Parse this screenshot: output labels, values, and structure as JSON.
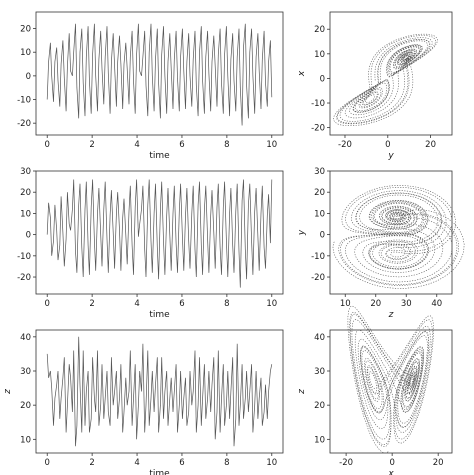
{
  "chart_data": [
    {
      "type": "line",
      "panel": "x-time",
      "xlabel": "time",
      "ylabel": "",
      "xlim": [
        -0.5,
        10.5
      ],
      "ylim": [
        -25,
        27
      ],
      "xticks": [
        0,
        2,
        4,
        6,
        8,
        10
      ],
      "yticks": [
        -20,
        -10,
        0,
        10,
        20
      ],
      "grid": false,
      "color": "#555555",
      "series": [
        {
          "x": [
            0,
            0.06,
            0.14,
            0.2,
            0.28,
            0.34,
            0.42,
            0.48,
            0.56,
            0.62,
            0.7,
            0.76,
            0.84,
            0.9,
            0.98,
            1.04,
            1.12,
            1.18,
            1.26,
            1.32,
            1.4,
            1.46,
            1.54,
            1.6,
            1.68,
            1.74,
            1.82,
            1.88,
            1.96,
            2.02,
            2.1,
            2.16,
            2.24,
            2.3,
            2.38,
            2.44,
            2.52,
            2.58,
            2.66,
            2.72,
            2.8,
            2.86,
            2.94,
            3.0,
            3.08,
            3.14,
            3.22,
            3.28,
            3.36,
            3.42,
            3.5,
            3.56,
            3.64,
            3.7,
            3.78,
            3.84,
            3.92,
            3.98,
            4.06,
            4.12,
            4.2,
            4.26,
            4.34,
            4.4,
            4.48,
            4.54,
            4.62,
            4.68,
            4.76,
            4.82,
            4.9,
            4.96,
            5.04,
            5.1,
            5.18,
            5.24,
            5.32,
            5.38,
            5.46,
            5.52,
            5.6,
            5.66,
            5.74,
            5.8,
            5.88,
            5.94,
            6.02,
            6.08,
            6.16,
            6.22,
            6.3,
            6.36,
            6.44,
            6.5,
            6.58,
            6.64,
            6.72,
            6.78,
            6.86,
            6.92,
            7.0,
            7.06,
            7.14,
            7.2,
            7.28,
            7.34,
            7.42,
            7.48,
            7.56,
            7.62,
            7.7,
            7.76,
            7.84,
            7.9,
            7.98,
            8.04,
            8.12,
            8.18,
            8.26,
            8.32,
            8.4,
            8.46,
            8.54,
            8.6,
            8.68,
            8.74,
            8.82,
            8.88,
            8.96,
            9.02,
            9.1,
            9.16,
            9.24,
            9.3,
            9.38,
            9.44,
            9.52,
            9.58,
            9.66,
            9.72,
            9.8,
            9.86,
            9.94,
            10.0
          ],
          "y": [
            -10,
            6,
            14,
            0,
            -11,
            6,
            12,
            -2,
            -13,
            5,
            15,
            -1,
            -15,
            4,
            18,
            2,
            0,
            10,
            22,
            -5,
            -18,
            10,
            20,
            -3,
            -17,
            8,
            21,
            -2,
            -16,
            9,
            22,
            0,
            -15,
            7,
            19,
            3,
            -12,
            8,
            21,
            1,
            -16,
            6,
            18,
            4,
            -13,
            6,
            17,
            5,
            -14,
            5,
            14,
            3,
            -12,
            8,
            19,
            -2,
            -16,
            9,
            22,
            2,
            0,
            8,
            19,
            -4,
            -17,
            10,
            22,
            0,
            -15,
            7,
            20,
            -3,
            -18,
            9,
            21,
            0,
            -16,
            6,
            18,
            3,
            -14,
            7,
            19,
            -1,
            -15,
            8,
            20,
            2,
            -14,
            6,
            18,
            0,
            -13,
            7,
            19,
            -4,
            -17,
            10,
            21,
            -2,
            -16,
            8,
            19,
            1,
            -15,
            6,
            17,
            4,
            -13,
            9,
            20,
            -3,
            -16,
            9,
            21,
            0,
            -17,
            7,
            18,
            -2,
            -15,
            8,
            20,
            -5,
            -21,
            12,
            22,
            -4,
            -18,
            10,
            20,
            0,
            -16,
            8,
            18,
            2,
            -14,
            7,
            19,
            -3,
            -13,
            6,
            15,
            -9
          ]
        }
      ]
    },
    {
      "type": "scatter",
      "panel": "x-vs-y",
      "xlabel": "y",
      "ylabel": "x",
      "xlim": [
        -27,
        30
      ],
      "ylim": [
        -23,
        27
      ],
      "xticks": [
        -20,
        0,
        20
      ],
      "yticks": [
        -20,
        -10,
        0,
        10,
        20
      ],
      "grid": false,
      "color": "#555555",
      "attractor": {
        "axes": [
          "y",
          "x"
        ]
      }
    },
    {
      "type": "line",
      "panel": "y-time",
      "xlabel": "time",
      "ylabel": "",
      "xlim": [
        -0.5,
        10.5
      ],
      "ylim": [
        -28,
        30
      ],
      "xticks": [
        0,
        2,
        4,
        6,
        8,
        10
      ],
      "yticks": [
        -20,
        -10,
        0,
        10,
        20,
        30
      ],
      "grid": false,
      "color": "#555555",
      "series": [
        {
          "x": [
            0,
            0.06,
            0.14,
            0.2,
            0.28,
            0.34,
            0.42,
            0.48,
            0.56,
            0.62,
            0.7,
            0.76,
            0.84,
            0.9,
            0.98,
            1.04,
            1.12,
            1.18,
            1.26,
            1.32,
            1.4,
            1.46,
            1.54,
            1.6,
            1.68,
            1.74,
            1.82,
            1.88,
            1.96,
            2.02,
            2.1,
            2.16,
            2.24,
            2.3,
            2.38,
            2.44,
            2.52,
            2.58,
            2.66,
            2.72,
            2.8,
            2.86,
            2.94,
            3.0,
            3.08,
            3.14,
            3.22,
            3.28,
            3.36,
            3.42,
            3.5,
            3.56,
            3.64,
            3.7,
            3.78,
            3.84,
            3.92,
            3.98,
            4.06,
            4.12,
            4.2,
            4.26,
            4.34,
            4.4,
            4.48,
            4.54,
            4.62,
            4.68,
            4.76,
            4.82,
            4.9,
            4.96,
            5.04,
            5.1,
            5.18,
            5.24,
            5.32,
            5.38,
            5.46,
            5.52,
            5.6,
            5.66,
            5.74,
            5.8,
            5.88,
            5.94,
            6.02,
            6.08,
            6.16,
            6.22,
            6.3,
            6.36,
            6.44,
            6.5,
            6.58,
            6.64,
            6.72,
            6.78,
            6.86,
            6.92,
            7.0,
            7.06,
            7.14,
            7.2,
            7.28,
            7.34,
            7.42,
            7.48,
            7.56,
            7.62,
            7.7,
            7.76,
            7.84,
            7.9,
            7.98,
            8.04,
            8.12,
            8.18,
            8.26,
            8.32,
            8.4,
            8.46,
            8.54,
            8.6,
            8.68,
            8.74,
            8.82,
            8.88,
            8.96,
            9.02,
            9.1,
            9.16,
            9.24,
            9.3,
            9.38,
            9.44,
            9.52,
            9.58,
            9.66,
            9.72,
            9.8,
            9.86,
            9.94,
            10.0
          ],
          "y": [
            0,
            15,
            8,
            -10,
            -3,
            14,
            2,
            -12,
            -5,
            18,
            1,
            -15,
            -2,
            20,
            5,
            2,
            12,
            26,
            -8,
            -18,
            14,
            24,
            -6,
            -20,
            12,
            25,
            -5,
            -19,
            13,
            26,
            -3,
            -17,
            10,
            22,
            0,
            -15,
            12,
            25,
            -2,
            -18,
            9,
            21,
            1,
            -16,
            10,
            20,
            2,
            -17,
            8,
            17,
            0,
            -14,
            11,
            23,
            -5,
            -19,
            13,
            26,
            -1,
            5,
            12,
            23,
            -7,
            -20,
            14,
            26,
            -3,
            -18,
            10,
            24,
            -6,
            -21,
            12,
            25,
            -3,
            -19,
            9,
            22,
            0,
            -17,
            10,
            23,
            -4,
            -18,
            11,
            24,
            -1,
            -17,
            9,
            22,
            -3,
            -16,
            10,
            23,
            -7,
            -20,
            14,
            25,
            -5,
            -19,
            12,
            23,
            -2,
            -18,
            9,
            21,
            1,
            -16,
            13,
            24,
            -6,
            -19,
            13,
            25,
            -3,
            -20,
            10,
            22,
            -5,
            -18,
            11,
            24,
            -8,
            -25,
            16,
            26,
            -7,
            -21,
            14,
            24,
            -3,
            -19,
            11,
            22,
            -1,
            -17,
            10,
            23,
            -6,
            -16,
            9,
            19,
            -4,
            26
          ]
        }
      ]
    },
    {
      "type": "scatter",
      "panel": "y-vs-z",
      "xlabel": "z",
      "ylabel": "y",
      "xlim": [
        5,
        45
      ],
      "ylim": [
        -28,
        30
      ],
      "xticks": [
        10,
        20,
        30,
        40
      ],
      "yticks": [
        -20,
        -10,
        0,
        10,
        20,
        30
      ],
      "grid": false,
      "color": "#555555",
      "attractor": {
        "axes": [
          "z",
          "y"
        ]
      }
    },
    {
      "type": "line",
      "panel": "z-time",
      "xlabel": "time",
      "ylabel": "z",
      "xlim": [
        -0.5,
        10.5
      ],
      "ylim": [
        6,
        42
      ],
      "xticks": [
        0,
        2,
        4,
        6,
        8,
        10
      ],
      "yticks": [
        10,
        20,
        30,
        40
      ],
      "grid": false,
      "color": "#555555",
      "series": [
        {
          "x": [
            0,
            0.06,
            0.14,
            0.2,
            0.28,
            0.34,
            0.42,
            0.48,
            0.56,
            0.62,
            0.7,
            0.76,
            0.84,
            0.9,
            0.98,
            1.04,
            1.12,
            1.18,
            1.26,
            1.32,
            1.4,
            1.46,
            1.54,
            1.6,
            1.68,
            1.74,
            1.82,
            1.88,
            1.96,
            2.02,
            2.1,
            2.16,
            2.24,
            2.3,
            2.38,
            2.44,
            2.52,
            2.58,
            2.66,
            2.72,
            2.8,
            2.86,
            2.94,
            3.0,
            3.08,
            3.14,
            3.22,
            3.28,
            3.36,
            3.42,
            3.5,
            3.56,
            3.64,
            3.7,
            3.78,
            3.84,
            3.92,
            3.98,
            4.06,
            4.12,
            4.2,
            4.26,
            4.34,
            4.4,
            4.48,
            4.54,
            4.62,
            4.68,
            4.76,
            4.82,
            4.9,
            4.96,
            5.04,
            5.1,
            5.18,
            5.24,
            5.32,
            5.38,
            5.46,
            5.52,
            5.6,
            5.66,
            5.74,
            5.8,
            5.88,
            5.94,
            6.02,
            6.08,
            6.16,
            6.22,
            6.3,
            6.36,
            6.44,
            6.5,
            6.58,
            6.64,
            6.72,
            6.78,
            6.86,
            6.92,
            7.0,
            7.06,
            7.14,
            7.2,
            7.28,
            7.34,
            7.42,
            7.48,
            7.56,
            7.62,
            7.7,
            7.76,
            7.84,
            7.9,
            7.98,
            8.04,
            8.12,
            8.18,
            8.26,
            8.32,
            8.4,
            8.46,
            8.54,
            8.6,
            8.68,
            8.74,
            8.82,
            8.88,
            8.96,
            9.02,
            9.1,
            9.16,
            9.24,
            9.3,
            9.38,
            9.44,
            9.52,
            9.58,
            9.66,
            9.72,
            9.8,
            9.86,
            9.94,
            10.0
          ],
          "y": [
            35,
            28,
            30,
            25,
            14,
            22,
            26,
            30,
            16,
            22,
            28,
            34,
            12,
            20,
            32,
            28,
            18,
            36,
            8,
            14,
            40,
            26,
            12,
            36,
            14,
            24,
            30,
            12,
            16,
            34,
            22,
            18,
            36,
            14,
            20,
            32,
            16,
            22,
            30,
            18,
            14,
            34,
            20,
            24,
            30,
            16,
            22,
            32,
            12,
            18,
            28,
            20,
            24,
            36,
            14,
            22,
            32,
            10,
            20,
            30,
            24,
            38,
            12,
            20,
            36,
            14,
            22,
            30,
            18,
            26,
            34,
            12,
            20,
            34,
            16,
            24,
            30,
            14,
            22,
            28,
            18,
            24,
            32,
            12,
            20,
            30,
            16,
            22,
            28,
            14,
            18,
            30,
            20,
            24,
            36,
            12,
            20,
            34,
            14,
            22,
            32,
            16,
            22,
            30,
            18,
            26,
            34,
            10,
            18,
            36,
            12,
            22,
            32,
            14,
            20,
            30,
            16,
            24,
            34,
            8,
            16,
            38,
            14,
            20,
            32,
            16,
            22,
            30,
            18,
            24,
            32,
            12,
            20,
            30,
            16,
            22,
            28,
            14,
            18,
            26,
            16,
            24,
            30,
            32
          ]
        }
      ]
    },
    {
      "type": "scatter",
      "panel": "z-vs-x",
      "xlabel": "x",
      "ylabel": "z",
      "xlim": [
        -27,
        26
      ],
      "ylim": [
        6,
        42
      ],
      "xticks": [
        -20,
        0,
        20
      ],
      "yticks": [
        10,
        20,
        30,
        40
      ],
      "grid": false,
      "color": "#555555",
      "attractor": {
        "axes": [
          "x",
          "z"
        ]
      }
    }
  ]
}
